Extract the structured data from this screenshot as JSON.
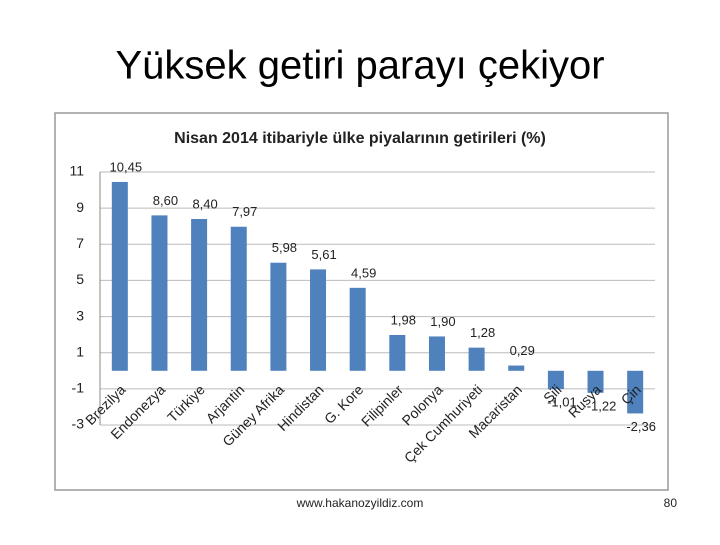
{
  "title": "Yüksek getiri parayı çekiyor",
  "footer": {
    "url": "www.hakanozyildiz.com",
    "page": "80"
  },
  "chart_data": {
    "type": "bar",
    "title": "Nisan 2014 itibariyle ülke piyalarının getirileri (%)",
    "categories": [
      "Brezilya",
      "Endonezya",
      "Türkiye",
      "Arjantin",
      "Güney Afrika",
      "Hindistan",
      "G. Kore",
      "Filipinler",
      "Polonya",
      "Çek Cumhuriyeti",
      "Macaristan",
      "Şili",
      "Rusya",
      "Çin"
    ],
    "values": [
      10.45,
      8.6,
      8.4,
      7.97,
      5.98,
      5.61,
      4.59,
      1.98,
      1.9,
      1.28,
      0.29,
      -1.01,
      -1.22,
      -2.36
    ],
    "value_labels": [
      "10,45",
      "8,60",
      "8,40",
      "7,97",
      "5,98",
      "5,61",
      "4,59",
      "1,98",
      "1,90",
      "1,28",
      "0,29",
      "-1,01",
      "-1,22",
      "-2,36"
    ],
    "color": "#4f81bd",
    "ylim": [
      -3,
      11
    ],
    "yticks": [
      -3,
      -1,
      1,
      3,
      5,
      7,
      9,
      11
    ],
    "grid": true
  }
}
